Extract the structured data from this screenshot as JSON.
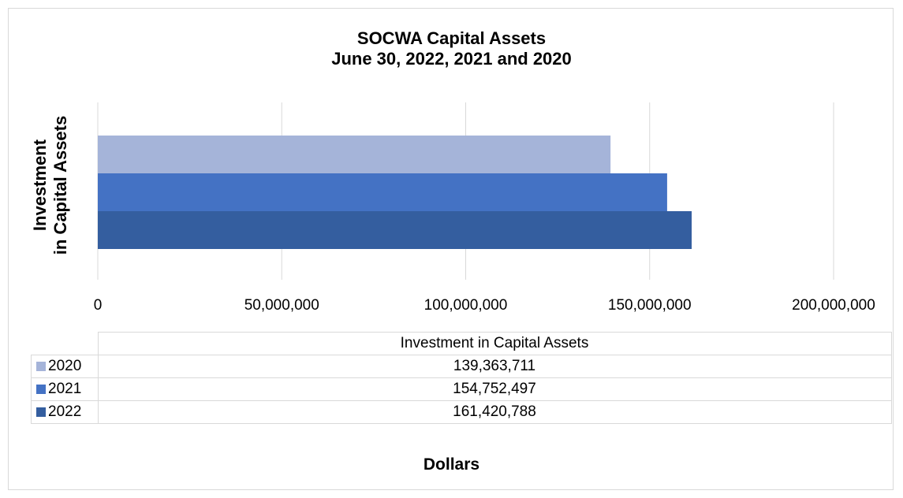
{
  "chart_data": {
    "type": "bar",
    "orientation": "horizontal",
    "title": "SOCWA Capital Assets",
    "subtitle": "June 30, 2022, 2021 and 2020",
    "ylabel_line1": "Investment",
    "ylabel_line2": "in Capital Assets",
    "xlabel": "Dollars",
    "xlim": [
      0,
      200000000
    ],
    "x_ticks": [
      "0",
      "50,000,000",
      "100,000,000",
      "150,000,000",
      "200,000,000"
    ],
    "grid": true,
    "categories": [
      "Investment in Capital Assets"
    ],
    "series": [
      {
        "name": "2020",
        "values": [
          139363711
        ],
        "label": "139,363,711",
        "color": "#a5b4d9"
      },
      {
        "name": "2021",
        "values": [
          154752497
        ],
        "label": "154,752,497",
        "color": "#4472c4"
      },
      {
        "name": "2022",
        "values": [
          161420788
        ],
        "label": "161,420,788",
        "color": "#345e9f"
      }
    ],
    "legend": "data-table"
  }
}
